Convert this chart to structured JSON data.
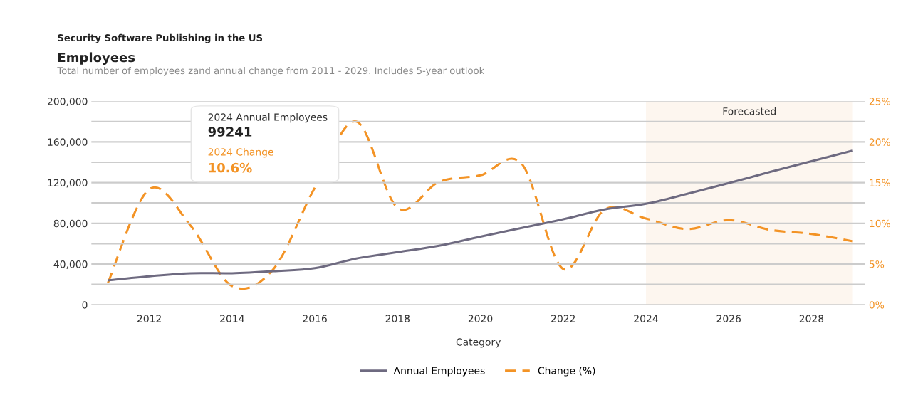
{
  "chart_data": {
    "type": "line",
    "title": "Employees",
    "subtitle": "Total number of employees zand annual change from 2011 - 2029. Includes 5-year outlook",
    "xlabel": "Category",
    "annotations": [
      "Security Software Publishing in the US",
      "2024 Annual Employees",
      "99241",
      "2024 Change",
      "10.6%"
    ],
    "x": [
      2011,
      2012,
      2013,
      2014,
      2015,
      2016,
      2017,
      2018,
      2019,
      2020,
      2021,
      2022,
      2023,
      2024,
      2025,
      2026,
      2027,
      2028,
      2029
    ],
    "series": [
      {
        "name": "Annual Employees",
        "color": "#6e6a80",
        "line_style": "solid",
        "values": [
          24000,
          28000,
          31000,
          31000,
          33000,
          36000,
          45500,
          51700,
          58000,
          67000,
          75500,
          84000,
          93700,
          99241,
          109000,
          119500,
          130500,
          141000,
          151500
        ]
      },
      {
        "name": "Change (%)",
        "color": "#f39325",
        "line_style": "dashed",
        "axis": "y2",
        "values": [
          2.7,
          14.2,
          9.7,
          2.3,
          4.4,
          14.4,
          22.5,
          11.9,
          15.1,
          15.9,
          17.3,
          4.4,
          11.7,
          10.6,
          9.3,
          10.4,
          9.2,
          8.7,
          7.8
        ]
      }
    ],
    "xlim": [
      2010.6,
      2029.3
    ],
    "xticks": [
      2012,
      2014,
      2016,
      2018,
      2020,
      2022,
      2024,
      2026,
      2028
    ],
    "ylim": [
      0,
      200000
    ],
    "yticks": [
      {
        "value": 0,
        "label": "0"
      },
      {
        "value": 20000,
        "label": null
      },
      {
        "value": 40000,
        "label": "40,000"
      },
      {
        "value": 60000,
        "label": null
      },
      {
        "value": 80000,
        "label": "80,000"
      },
      {
        "value": 100000,
        "label": null
      },
      {
        "value": 120000,
        "label": "120,000"
      },
      {
        "value": 140000,
        "label": null
      },
      {
        "value": 160000,
        "label": "160,000"
      },
      {
        "value": 180000,
        "label": null
      },
      {
        "value": 200000,
        "label": "200,000"
      }
    ],
    "y2lim": [
      0,
      25
    ],
    "y2ticks": [
      {
        "value": 0,
        "label": "0%"
      },
      {
        "value": 5,
        "label": "5%"
      },
      {
        "value": 10,
        "label": "10%"
      },
      {
        "value": 15,
        "label": "15%"
      },
      {
        "value": 20,
        "label": "20%"
      },
      {
        "value": 25,
        "label": "25%"
      }
    ],
    "bands": [
      {
        "axis": "x",
        "from": 2024,
        "to": 2029,
        "label": "Forecasted",
        "color": "#fdf6ef"
      }
    ],
    "grid": "y",
    "legend": "bottom",
    "marker": "none"
  }
}
